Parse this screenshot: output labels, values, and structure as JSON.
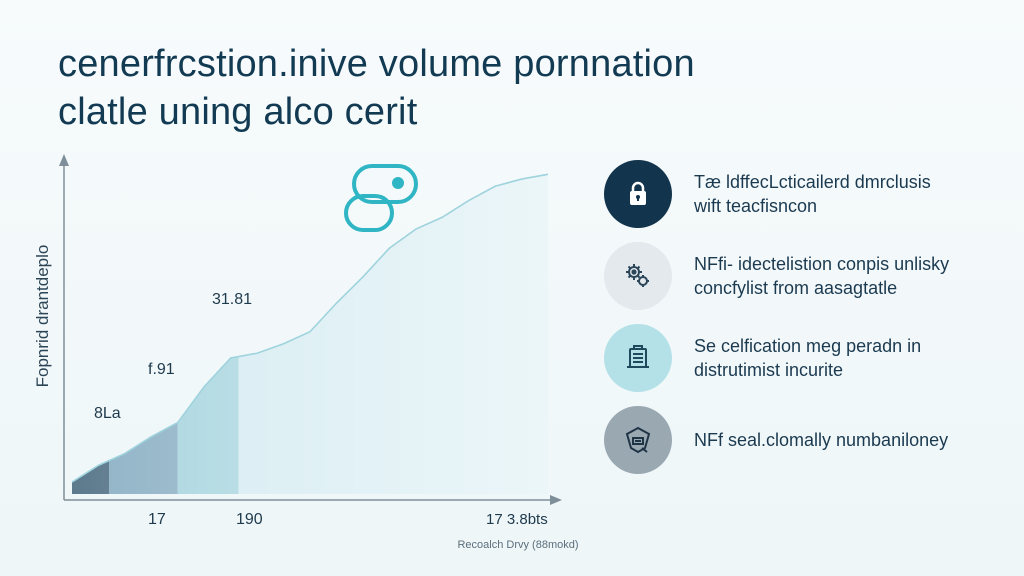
{
  "title_lines": [
    "cenerfrcstion.inive volume pornnation",
    "clatle uning alco cerit"
  ],
  "chart_data": {
    "type": "area",
    "title": "cenerfrcstion.inive volume pornnation clatle uning alco cerit",
    "ylabel": "Fopnrid drantdeplo",
    "xlabel": "Recoalch Drvy (88mokd)",
    "x_ticks": [
      "17",
      "190",
      "17 3.8bts"
    ],
    "y_annotations": [
      "8La",
      "f.91",
      "31.81"
    ],
    "x": [
      0,
      1,
      2,
      3,
      4,
      5,
      6,
      7,
      8,
      9,
      10,
      11,
      12,
      13,
      14,
      15,
      16,
      17,
      18
    ],
    "values": [
      5,
      12,
      17,
      24,
      30,
      45,
      57,
      59,
      63,
      68,
      80,
      91,
      103,
      111,
      116,
      123,
      129,
      132,
      134
    ],
    "xlim": [
      0,
      18
    ],
    "ylim": [
      0,
      140
    ],
    "shaded_segments": [
      {
        "from": 0,
        "to": 1.4,
        "color": "#5d7a8d"
      },
      {
        "from": 1.4,
        "to": 4.0,
        "color": "#8fb3c6"
      },
      {
        "from": 4.0,
        "to": 6.3,
        "color": "#a8d5df"
      },
      {
        "from": 6.3,
        "to": 18,
        "color": "#d4ebf1"
      }
    ],
    "grid": false,
    "legend": "none"
  },
  "features": [
    {
      "lines": [
        "Tæ ldffecLcticailerd dmrclusis",
        "wift teacfisncon"
      ],
      "icon": "lock-icon",
      "bg": "#12344c",
      "fg": "#ffffff"
    },
    {
      "lines": [
        "NFfi- idectelistion conpis unlisky",
        "concfylist from aasagtatle"
      ],
      "icon": "gears-icon",
      "bg": "#e3e9ec",
      "fg": "#2b4658"
    },
    {
      "lines": [
        "Se celfication meg peradn in",
        "distrutimist incurite"
      ],
      "icon": "document-icon",
      "bg": "#b4e1e8",
      "fg": "#1f4a5e"
    },
    {
      "lines": [
        "NFf seal.clomally numbaniloney"
      ],
      "icon": "shield-icon",
      "bg": "#9aa8b2",
      "fg": "#1f3445"
    }
  ]
}
